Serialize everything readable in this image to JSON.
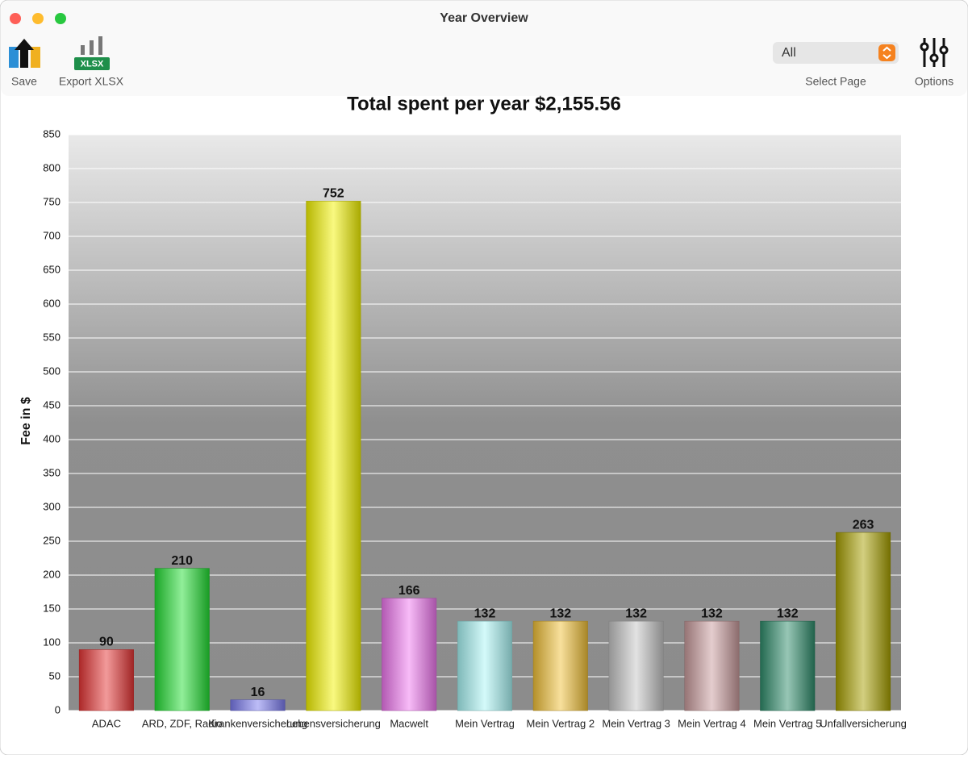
{
  "window": {
    "title": "Year Overview"
  },
  "toolbar": {
    "save": "Save",
    "export": "Export XLSX",
    "export_icon": "XLSX",
    "select_value": "All",
    "select_label": "Select Page",
    "options": "Options"
  },
  "chart_data": {
    "type": "bar",
    "title": "Total spent per year $2,155.56",
    "y_label": "Fee in $",
    "categories": [
      "ADAC",
      "ARD, ZDF, Radio",
      "Krankenversicherung",
      "Lebensversicherung",
      "Macwelt",
      "Mein Vertrag",
      "Mein Vertrag 2",
      "Mein Vertrag 3",
      "Mein Vertrag 4",
      "Mein Vertrag 5",
      "Unfallversicherung"
    ],
    "values": [
      90,
      210,
      16,
      752,
      166,
      132,
      132,
      132,
      132,
      132,
      263
    ],
    "colors": [
      "#e53535",
      "#22dd33",
      "#7b7bee",
      "#f2f200",
      "#ef77ef",
      "#a8f4f4",
      "#f0c038",
      "#c4c4c4",
      "#c89a9c",
      "#2f8c6b",
      "#a69e00"
    ],
    "ylim": [
      0,
      850
    ],
    "yticks": [
      0,
      50,
      100,
      150,
      200,
      250,
      300,
      350,
      400,
      450,
      500,
      550,
      600,
      650,
      700,
      750,
      800,
      850
    ],
    "grid": true
  }
}
